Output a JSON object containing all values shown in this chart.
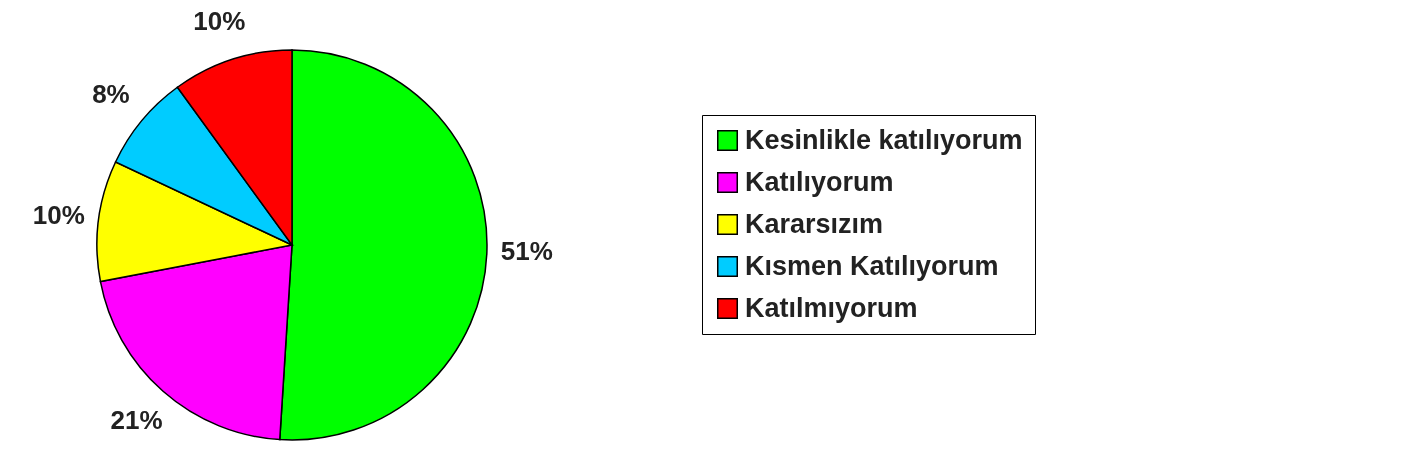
{
  "chart_data": {
    "type": "pie",
    "categories": [
      "Kesinlikle katılıyorum",
      "Katılıyorum",
      "Kararsızım",
      "Kısmen  Katılıyorum",
      "Katılmıyorum"
    ],
    "values": [
      51,
      21,
      10,
      8,
      10
    ],
    "colors": [
      "#00ff00",
      "#ff00ff",
      "#ffff00",
      "#00ccff",
      "#ff0000"
    ],
    "value_labels": [
      "51%",
      "21%",
      "10%",
      "8%",
      "10%"
    ],
    "legend": "right"
  }
}
